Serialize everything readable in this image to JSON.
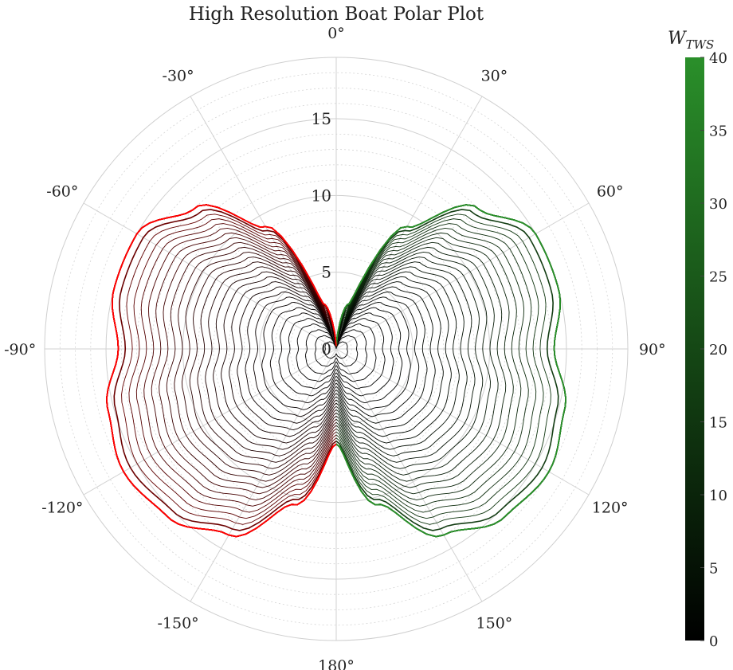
{
  "chart_data": {
    "type": "line",
    "title": "High Resolution Boat Polar Plot",
    "subtype": "polar",
    "angle_unit": "degrees",
    "angle_ticks": [
      0,
      30,
      60,
      90,
      120,
      150,
      180,
      -150,
      -120,
      -90,
      -60,
      -30
    ],
    "angle_tick_labels": [
      "0°",
      "30°",
      "60°",
      "90°",
      "120°",
      "150°",
      "180°",
      "-150°",
      "-120°",
      "-90°",
      "-60°",
      "-30°"
    ],
    "r_ticks": [
      0,
      5,
      10,
      15
    ],
    "r_tick_labels": [
      "0",
      "5",
      "10",
      "15"
    ],
    "r_max": 19,
    "grid": true,
    "colorbar": {
      "title": "W",
      "title_subscript": "TWS",
      "range": [
        0,
        40
      ],
      "ticks": [
        0,
        5,
        10,
        15,
        20,
        25,
        30,
        35,
        40
      ],
      "tick_labels": [
        "0",
        "5",
        "10",
        "15",
        "20",
        "25",
        "30",
        "35",
        "40"
      ],
      "color_low": "#000000",
      "color_high": "#2a8f2a"
    },
    "colors": {
      "starboard_high": "#2a8f2a",
      "port_high": "#ff0000",
      "low": "#000000"
    },
    "series": {
      "wind_speeds": [
        1,
        2,
        3,
        4,
        5,
        6,
        7,
        8,
        9,
        10,
        11,
        12,
        13,
        14,
        15,
        16,
        17,
        18,
        19,
        20,
        21,
        22,
        23,
        24,
        25,
        26,
        27,
        28,
        29,
        30,
        31,
        32,
        33,
        34,
        35,
        36,
        37,
        38,
        39,
        40
      ],
      "angles": [
        0,
        15,
        30,
        45,
        60,
        75,
        90,
        105,
        120,
        135,
        150,
        165,
        180
      ],
      "reference_speed_at_max_wind": [
        0.2,
        3.0,
        9.2,
        13.0,
        15.0,
        15.0,
        14.2,
        15.4,
        16.0,
        15.5,
        14.0,
        10.5,
        6.2
      ]
    }
  }
}
